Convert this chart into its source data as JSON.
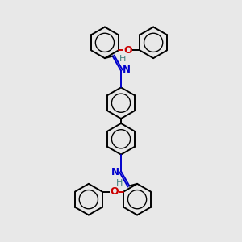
{
  "bg_color": "#e8e8e8",
  "bond_color": "#000000",
  "N_color": "#0000cc",
  "O_color": "#cc0000",
  "H_color": "#408080",
  "bond_width": 1.4,
  "fig_size": [
    3.0,
    3.0
  ],
  "dpi": 100,
  "xlim": [
    -3.5,
    3.5
  ],
  "ylim": [
    -5.0,
    5.0
  ]
}
